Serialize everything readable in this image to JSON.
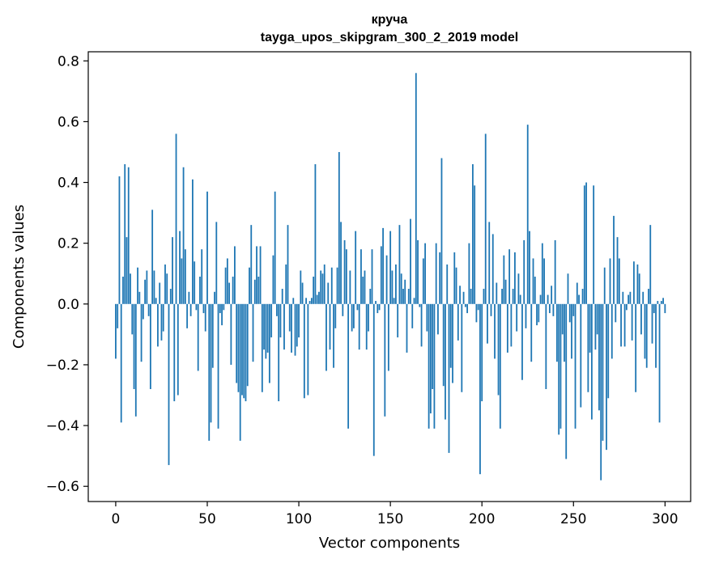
{
  "chart_data": {
    "type": "bar",
    "title_line1": "круча",
    "title_line2": "tayga_upos_skipgram_300_2_2019 model",
    "xlabel": "Vector components",
    "ylabel": "Components values",
    "xlim": [
      -15,
      314
    ],
    "ylim": [
      -0.65,
      0.83
    ],
    "xticks": [
      0,
      50,
      100,
      150,
      200,
      250,
      300
    ],
    "xtick_labels": [
      "0",
      "50",
      "100",
      "150",
      "200",
      "250",
      "300"
    ],
    "yticks": [
      -0.6,
      -0.4,
      -0.2,
      0.0,
      0.2,
      0.4,
      0.6,
      0.8
    ],
    "ytick_labels": [
      "−0.6",
      "−0.4",
      "−0.2",
      "0.0",
      "0.2",
      "0.4",
      "0.6",
      "0.8"
    ],
    "bar_color": "#1f77b4",
    "values": [
      -0.18,
      -0.08,
      0.42,
      -0.39,
      0.09,
      0.46,
      0.22,
      0.45,
      0.1,
      -0.1,
      -0.28,
      -0.37,
      0.12,
      0.04,
      -0.19,
      -0.05,
      0.08,
      0.11,
      -0.04,
      -0.28,
      0.31,
      0.11,
      0.02,
      -0.14,
      0.07,
      -0.12,
      -0.09,
      0.13,
      0.1,
      -0.53,
      0.05,
      0.22,
      -0.32,
      0.56,
      -0.3,
      0.24,
      0.15,
      0.45,
      0.18,
      -0.08,
      0.04,
      -0.04,
      0.41,
      0.14,
      -0.02,
      -0.22,
      0.09,
      0.18,
      -0.03,
      -0.09,
      0.37,
      -0.45,
      -0.39,
      -0.21,
      0.04,
      0.27,
      -0.41,
      -0.03,
      -0.07,
      -0.02,
      0.12,
      0.15,
      0.07,
      -0.2,
      0.09,
      0.19,
      -0.26,
      -0.29,
      -0.45,
      -0.3,
      -0.31,
      -0.32,
      -0.27,
      0.12,
      0.26,
      -0.19,
      0.08,
      0.19,
      0.09,
      0.19,
      -0.29,
      -0.15,
      -0.18,
      -0.16,
      -0.26,
      -0.11,
      0.16,
      0.37,
      -0.04,
      -0.32,
      -0.11,
      0.05,
      -0.15,
      0.13,
      0.26,
      -0.09,
      -0.16,
      0.02,
      -0.17,
      -0.14,
      -0.11,
      0.11,
      0.07,
      -0.31,
      0.02,
      -0.3,
      0.01,
      0.02,
      0.09,
      0.46,
      0.03,
      0.04,
      0.11,
      0.1,
      0.13,
      -0.22,
      0.07,
      -0.15,
      0.12,
      -0.21,
      -0.08,
      0.12,
      0.5,
      0.27,
      -0.04,
      0.21,
      0.18,
      -0.41,
      0.11,
      -0.09,
      -0.08,
      0.24,
      -0.02,
      -0.15,
      0.18,
      0.09,
      0.11,
      -0.15,
      -0.09,
      0.05,
      0.18,
      -0.5,
      0.01,
      -0.03,
      -0.02,
      0.19,
      0.25,
      -0.37,
      0.16,
      -0.22,
      0.24,
      0.11,
      0.02,
      0.13,
      -0.11,
      0.26,
      0.1,
      0.05,
      0.08,
      -0.16,
      0.05,
      0.28,
      -0.08,
      0.02,
      0.76,
      0.21,
      -0.01,
      -0.14,
      0.15,
      0.2,
      -0.09,
      -0.41,
      -0.36,
      -0.28,
      -0.41,
      0.2,
      -0.1,
      0.17,
      0.48,
      -0.27,
      -0.38,
      0.13,
      -0.49,
      -0.21,
      -0.26,
      0.17,
      0.12,
      -0.12,
      0.06,
      -0.29,
      0.04,
      -0.01,
      -0.03,
      0.2,
      0.05,
      0.46,
      0.39,
      -0.06,
      -0.02,
      -0.56,
      -0.32,
      0.05,
      0.56,
      -0.13,
      0.27,
      -0.04,
      0.23,
      -0.18,
      0.07,
      -0.3,
      -0.41,
      0.05,
      0.16,
      0.08,
      -0.16,
      0.18,
      -0.14,
      0.05,
      0.17,
      -0.09,
      0.1,
      0.03,
      -0.25,
      0.21,
      -0.08,
      0.59,
      0.24,
      -0.19,
      0.15,
      0.09,
      -0.07,
      -0.06,
      0.03,
      0.2,
      0.15,
      -0.28,
      0.03,
      -0.03,
      0.06,
      -0.04,
      0.21,
      -0.19,
      -0.43,
      -0.41,
      -0.1,
      -0.19,
      -0.51,
      0.1,
      -0.06,
      -0.18,
      -0.04,
      -0.41,
      0.07,
      0.03,
      -0.34,
      0.05,
      0.39,
      0.4,
      -0.29,
      -0.16,
      -0.38,
      0.39,
      -0.15,
      -0.1,
      -0.35,
      -0.58,
      -0.45,
      0.12,
      -0.48,
      -0.31,
      0.15,
      -0.18,
      0.29,
      -0.06,
      0.22,
      0.15,
      -0.14,
      0.04,
      -0.14,
      -0.02,
      0.03,
      0.04,
      -0.12,
      0.14,
      -0.29,
      0.13,
      0.1,
      -0.1,
      0.04,
      -0.18,
      -0.21,
      0.05,
      0.26,
      -0.13,
      -0.03,
      -0.21,
      0.01,
      -0.39,
      0.01,
      0.02,
      -0.03
    ]
  }
}
